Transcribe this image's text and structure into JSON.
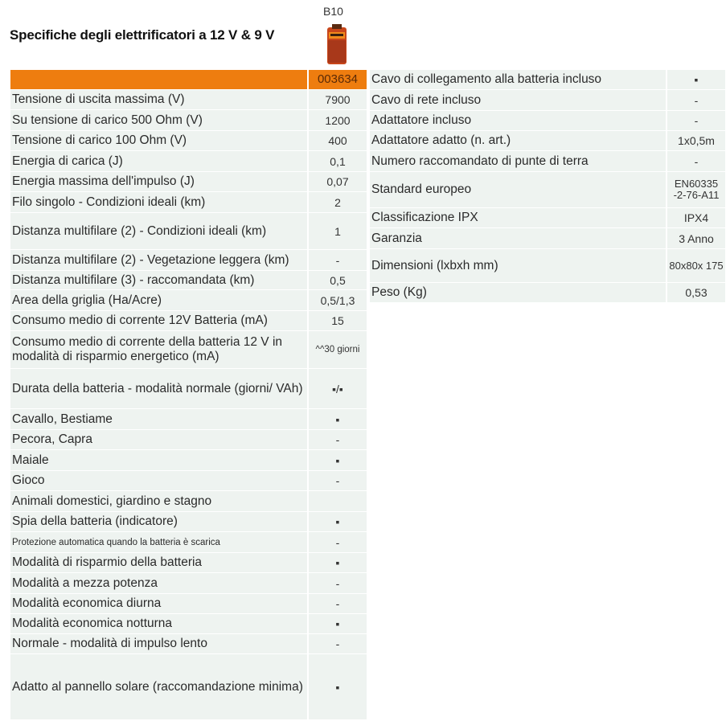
{
  "title": "Specifiche degli elettrificatori a 12 V & 9 V",
  "model": "B10",
  "article_number": "003634",
  "left_rows": [
    {
      "label": "Tensione di uscita massima (V)",
      "value": "7900"
    },
    {
      "label": "Su tensione di carico 500 Ohm (V)",
      "value": "1200"
    },
    {
      "label": "Tensione di carico 100 Ohm (V)",
      "value": "400"
    },
    {
      "label": "Energia di carica (J)",
      "value": "0,1"
    },
    {
      "label": "Energia massima dell'impulso (J)",
      "value": "0,07"
    },
    {
      "label": "Filo singolo - Condizioni ideali (km)",
      "value": "2"
    },
    {
      "label": "Distanza multifilare (2) - Condizioni ideali (km)",
      "value": "1"
    },
    {
      "label": "Distanza multifilare (2) - Vegetazione leggera (km)",
      "value": "-"
    },
    {
      "label": "Distanza multifilare (3) - raccomandata (km)",
      "value": "0,5"
    },
    {
      "label": "Area della griglia (Ha/Acre)",
      "value": "0,5/1,3"
    },
    {
      "label": "Consumo medio di corrente 12V Batteria (mA)",
      "value": "15"
    },
    {
      "label": "Consumo medio di corrente della batteria 12 V in modalità di risparmio energetico (mA)",
      "value": "^^30 giorni"
    },
    {
      "label": "Durata della batteria - modalità normale (giorni/ VAh)",
      "value": "▪/▪"
    },
    {
      "label": "Cavallo, Bestiame",
      "value": "▪"
    },
    {
      "label": "Pecora, Capra",
      "value": "-"
    },
    {
      "label": "Maiale",
      "value": "▪"
    },
    {
      "label": "Gioco",
      "value": "-"
    },
    {
      "label": "Animali domestici, giardino e stagno",
      "value": ""
    },
    {
      "label": "Spia della batteria (indicatore)",
      "value": "▪"
    },
    {
      "label": "Protezione automatica quando la batteria è scarica",
      "value": "-"
    },
    {
      "label": "Modalità di risparmio della batteria",
      "value": "▪"
    },
    {
      "label": "Modalità a mezza potenza",
      "value": "-"
    },
    {
      "label": "Modalità economica diurna",
      "value": "-"
    },
    {
      "label": "Modalità economica notturna",
      "value": "▪"
    },
    {
      "label": "Normale - modalità di impulso lento",
      "value": "-"
    },
    {
      "label": "Adatto al pannello solare (raccomandazione minima)",
      "value": "▪"
    }
  ],
  "right_rows": [
    {
      "label": "Cavo di collegamento alla batteria incluso",
      "value": "▪"
    },
    {
      "label": "Cavo di rete incluso",
      "value": "-"
    },
    {
      "label": "Adattatore incluso",
      "value": "-"
    },
    {
      "label": "Adattatore adatto (n. art.)",
      "value": "1x0,5m"
    },
    {
      "label": "Numero raccomandato di punte di terra",
      "value": "-"
    },
    {
      "label": "Standard europeo",
      "value": "EN60335 -2-76-A11"
    },
    {
      "label": "Classificazione IPX",
      "value": "IPX4"
    },
    {
      "label": "Garanzia",
      "value": "3 Anno"
    },
    {
      "label": "Dimensioni (lxbxh mm)",
      "value": "80x80x 175"
    },
    {
      "label": "Peso (Kg)",
      "value": "0,53"
    }
  ]
}
